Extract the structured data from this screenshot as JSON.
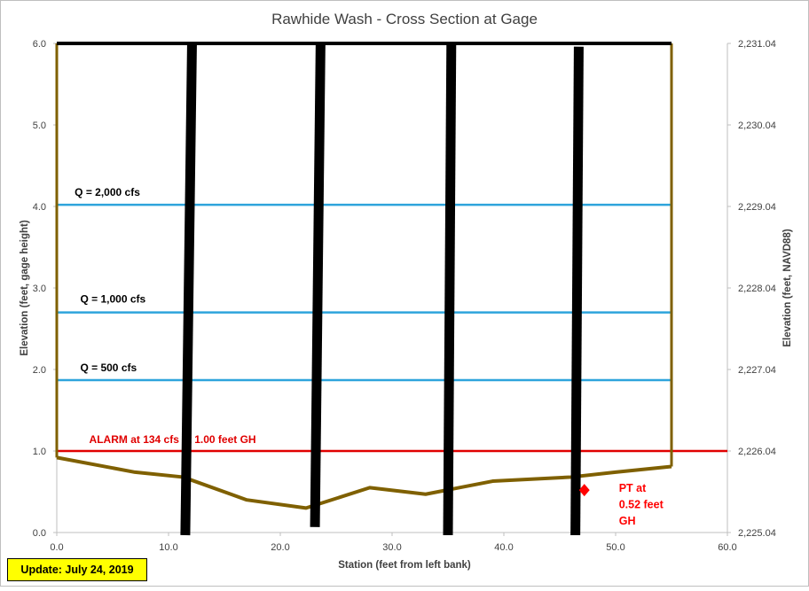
{
  "chart_data": {
    "type": "line",
    "title": "Rawhide Wash - Cross Section at Gage",
    "xlabel": "Station (feet from left bank)",
    "ylabel": "Elevation  (feet, gage height)",
    "y2label": "Elevation  (feet, NAVD88)",
    "xlim": [
      0,
      60
    ],
    "ylim": [
      0,
      6
    ],
    "y2lim": [
      2225.04,
      2231.04
    ],
    "x_ticks": [
      "0.0",
      "10.0",
      "20.0",
      "30.0",
      "40.0",
      "50.0",
      "60.0"
    ],
    "y_ticks": [
      "0.0",
      "1.0",
      "2.0",
      "3.0",
      "4.0",
      "5.0",
      "6.0"
    ],
    "y2_ticks": [
      "2,225.04",
      "2,226.04",
      "2,227.04",
      "2,228.04",
      "2,229.04",
      "2,230.04",
      "2,231.04"
    ],
    "cross_section": {
      "x": [
        0,
        7,
        11.3,
        17,
        22.3,
        28,
        33,
        39,
        46,
        50,
        55
      ],
      "y": [
        0.92,
        0.74,
        0.68,
        0.4,
        0.3,
        0.55,
        0.47,
        0.63,
        0.68,
        0.74,
        0.81
      ],
      "color": "#7f6000"
    },
    "bank_lines": {
      "left_x": 0,
      "right_x": 55,
      "top_y": 6,
      "color": "#7f6000"
    },
    "bridge_top": {
      "x": [
        0,
        55
      ],
      "y": 6,
      "color": "#000000"
    },
    "piers": [
      {
        "x_top": 12.1,
        "x_bottom": 11.5,
        "y_top": 6.0,
        "y_bottom": 0.0
      },
      {
        "x_top": 23.6,
        "x_bottom": 23.1,
        "y_top": 6.0,
        "y_bottom": 0.1
      },
      {
        "x_top": 35.3,
        "x_bottom": 35.0,
        "y_top": 6.0,
        "y_bottom": 0.0
      },
      {
        "x_top": 46.7,
        "x_bottom": 46.4,
        "y_top": 5.96,
        "y_bottom": 0.0
      }
    ],
    "flow_lines": [
      {
        "label": "Q = 2,000 cfs",
        "y": 4.02,
        "x": [
          0,
          55
        ],
        "color": "#2ea4dc",
        "label_x": 1.6,
        "label_y": 4.13
      },
      {
        "label": "Q = 1,000 cfs",
        "y": 2.7,
        "x": [
          0,
          55
        ],
        "color": "#2ea4dc",
        "label_x": 2.1,
        "label_y": 2.82
      },
      {
        "label": "Q = 500 cfs",
        "y": 1.87,
        "x": [
          0,
          55
        ],
        "color": "#2ea4dc",
        "label_x": 2.1,
        "label_y": 1.98
      }
    ],
    "alarm": {
      "label": "ALARM at 134 cfs   at 1.00 feet GH",
      "y": 1.0,
      "x": [
        0,
        60
      ],
      "color": "#e00000",
      "label_x": 2.9,
      "label_y": 1.1
    },
    "pt_marker": {
      "x": 47.2,
      "y": 0.52,
      "label": [
        "PT at",
        "0.52 feet",
        "GH"
      ],
      "color": "#ff0000"
    }
  },
  "update_label": "Update: July 24, 2019"
}
